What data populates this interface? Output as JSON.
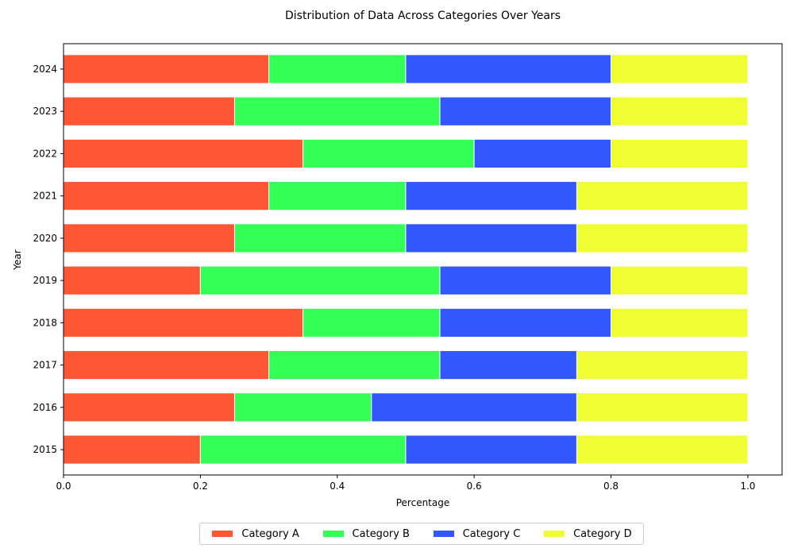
{
  "chart_data": {
    "type": "bar",
    "orientation": "horizontal",
    "stacked": true,
    "title": "Distribution of Data Across Categories Over Years",
    "xlabel": "Percentage",
    "ylabel": "Year",
    "xlim": [
      0.0,
      1.05
    ],
    "xticks": [
      "0.0",
      "0.2",
      "0.4",
      "0.6",
      "0.8",
      "1.0"
    ],
    "grid": false,
    "legend_position": "bottom-center",
    "categories": [
      "2015",
      "2016",
      "2017",
      "2018",
      "2019",
      "2020",
      "2021",
      "2022",
      "2023",
      "2024"
    ],
    "series": [
      {
        "name": "Category A",
        "color": "#ff5733",
        "values": [
          0.2,
          0.25,
          0.3,
          0.35,
          0.2,
          0.25,
          0.3,
          0.35,
          0.25,
          0.3
        ]
      },
      {
        "name": "Category B",
        "color": "#33ff57",
        "values": [
          0.3,
          0.2,
          0.25,
          0.2,
          0.35,
          0.25,
          0.2,
          0.25,
          0.3,
          0.2
        ]
      },
      {
        "name": "Category C",
        "color": "#3357ff",
        "values": [
          0.25,
          0.3,
          0.2,
          0.25,
          0.25,
          0.25,
          0.25,
          0.2,
          0.25,
          0.3
        ]
      },
      {
        "name": "Category D",
        "color": "#f0ff33",
        "values": [
          0.25,
          0.25,
          0.25,
          0.2,
          0.2,
          0.25,
          0.25,
          0.2,
          0.2,
          0.2
        ]
      }
    ]
  }
}
